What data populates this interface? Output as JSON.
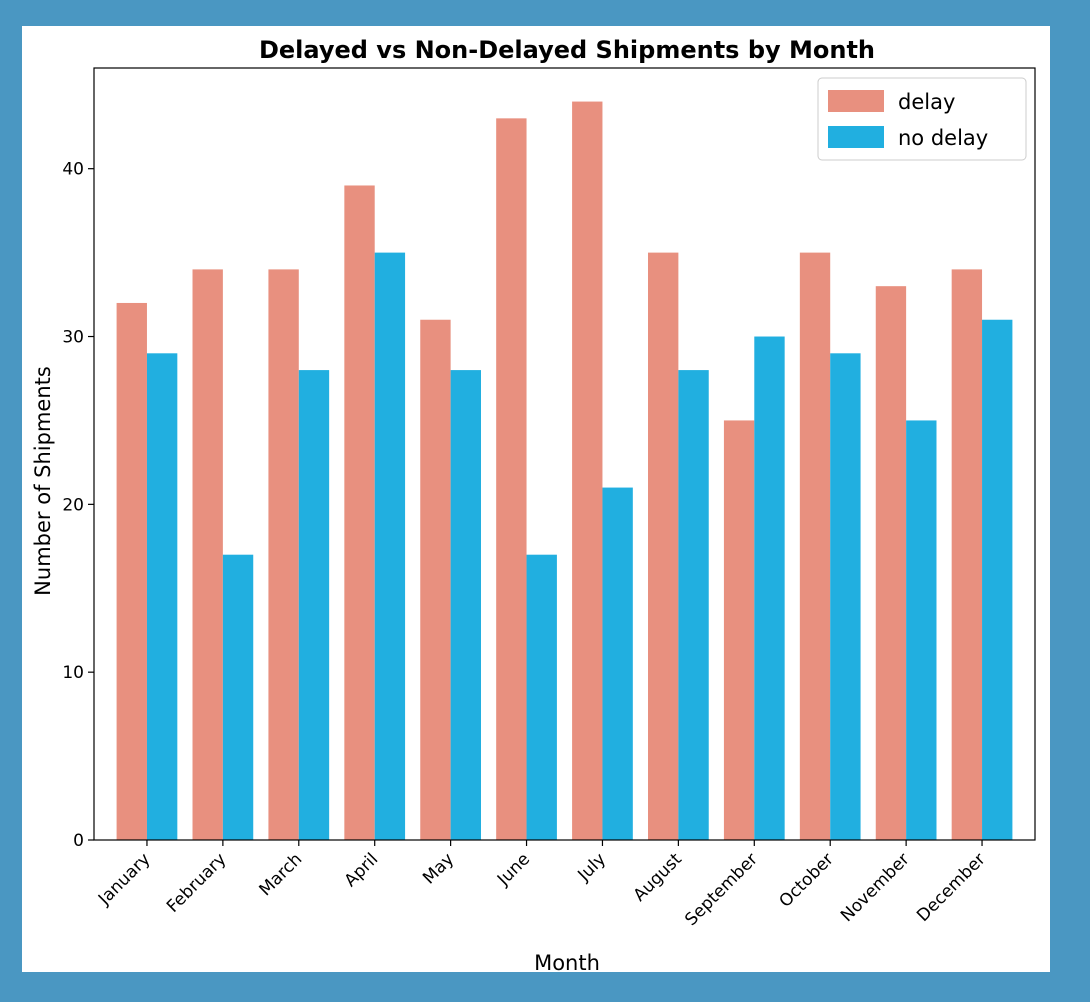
{
  "chart_data": {
    "type": "bar",
    "title": "Delayed vs Non-Delayed Shipments by Month",
    "xlabel": "Month",
    "ylabel": "Number of Shipments",
    "categories": [
      "January",
      "February",
      "March",
      "April",
      "May",
      "June",
      "July",
      "August",
      "September",
      "October",
      "November",
      "December"
    ],
    "series": [
      {
        "name": "delay",
        "color": "#e8907f",
        "values": [
          32,
          34,
          34,
          39,
          31,
          43,
          44,
          35,
          25,
          35,
          33,
          34
        ]
      },
      {
        "name": "no delay",
        "color": "#21afe0",
        "values": [
          29,
          17,
          28,
          35,
          28,
          17,
          21,
          28,
          30,
          29,
          25,
          31
        ]
      }
    ],
    "ylim": [
      0,
      46
    ],
    "yticks": [
      0,
      10,
      20,
      30,
      40
    ],
    "grid": false,
    "legend_position": "top-right"
  }
}
